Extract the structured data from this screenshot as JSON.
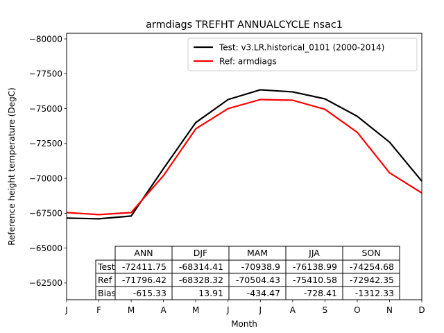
{
  "chart_data": {
    "type": "line",
    "title": "armdiags TREFHT ANNUALCYCLE nsac1",
    "xlabel": "Month",
    "ylabel": "Reference height temperature (DegC)",
    "categories": [
      "J",
      "F",
      "M",
      "A",
      "M",
      "J",
      "J",
      "A",
      "S",
      "O",
      "N",
      "D"
    ],
    "ylim": [
      -61300,
      -80400
    ],
    "y_inverted": true,
    "yticks": [
      -80000,
      -77500,
      -75000,
      -72500,
      -70000,
      -67500,
      -65000,
      -62500
    ],
    "ytick_labels": [
      "−80000",
      "−77500",
      "−75000",
      "−72500",
      "−70000",
      "−67500",
      "−65000",
      "−62500"
    ],
    "grid": false,
    "legend_position": "top-right",
    "series": [
      {
        "name": "Test: v3.LR.historical_0101 (2000-2014)",
        "color": "#000000",
        "values": [
          -67150,
          -67100,
          -67300,
          -70700,
          -74000,
          -75650,
          -76350,
          -76200,
          -75700,
          -74450,
          -72600,
          -69800
        ]
      },
      {
        "name": "Ref: armdiags",
        "color": "#ff0000",
        "values": [
          -67550,
          -67400,
          -67550,
          -70200,
          -73550,
          -75000,
          -75650,
          -75600,
          -74950,
          -73300,
          -70400,
          -68950
        ]
      }
    ],
    "table": {
      "col_labels": [
        "ANN",
        "DJF",
        "MAM",
        "JJA",
        "SON"
      ],
      "rows": [
        {
          "label": "Test",
          "cells": [
            "-72411.75",
            "-68314.41",
            "-70938.9",
            "-76138.99",
            "-74254.68"
          ]
        },
        {
          "label": "Ref",
          "cells": [
            "-71796.42",
            "-68328.32",
            "-70504.43",
            "-75410.58",
            "-72942.35"
          ]
        },
        {
          "label": "Bias",
          "cells": [
            "-615.33",
            "13.91",
            "-434.47",
            "-728.41",
            "-1312.33"
          ]
        }
      ]
    }
  }
}
